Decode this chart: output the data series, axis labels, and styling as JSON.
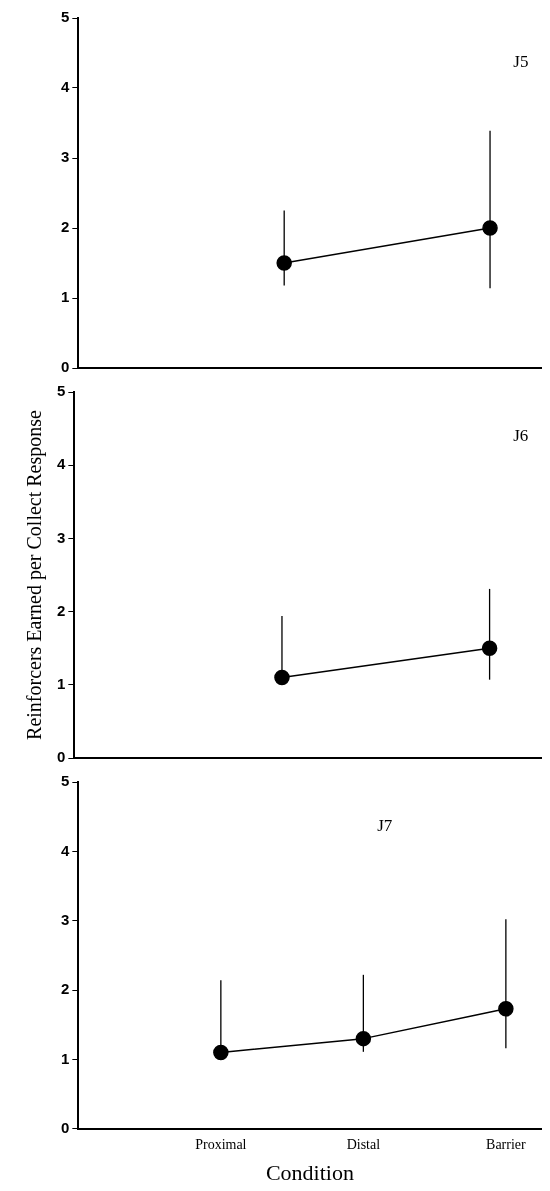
{
  "chart_data": [
    {
      "type": "line",
      "categories": [
        null,
        null
      ],
      "annotations": [
        "J5"
      ],
      "ylim": [
        0,
        5
      ],
      "yticks": [
        0,
        1,
        2,
        3,
        4,
        5
      ],
      "grid": false,
      "legend": false,
      "marker": "circle",
      "tick_labels": "y",
      "series": [
        {
          "color": "#000000",
          "values": [
            1.5,
            2.0
          ],
          "errors": [
            [
              1.18,
              2.25
            ],
            [
              1.14,
              3.39
            ]
          ]
        }
      ]
    },
    {
      "type": "line",
      "categories": [
        null,
        null
      ],
      "annotations": [
        "J6"
      ],
      "ylabel": "Reinforcers Earned per Collect Response",
      "ylim": [
        0,
        5
      ],
      "yticks": [
        0,
        1,
        2,
        3,
        4,
        5
      ],
      "grid": false,
      "legend": false,
      "marker": "circle",
      "tick_labels": "y",
      "series": [
        {
          "color": "#000000",
          "values": [
            1.1,
            1.5
          ],
          "errors": [
            [
              1.1,
              1.94
            ],
            [
              1.07,
              2.31
            ]
          ]
        }
      ]
    },
    {
      "type": "line",
      "categories": [
        "Proximal",
        "Distal",
        "Barrier"
      ],
      "annotations": [
        "J7"
      ],
      "xlabel": "Condition",
      "ylim": [
        0,
        5
      ],
      "yticks": [
        0,
        1,
        2,
        3,
        4,
        5
      ],
      "grid": false,
      "legend": false,
      "marker": "circle",
      "series": [
        {
          "color": "#000000",
          "values": [
            1.1,
            1.3,
            1.73
          ],
          "errors": [
            [
              1.1,
              2.14
            ],
            [
              1.11,
              2.22
            ],
            [
              1.16,
              3.02
            ]
          ]
        }
      ]
    }
  ]
}
